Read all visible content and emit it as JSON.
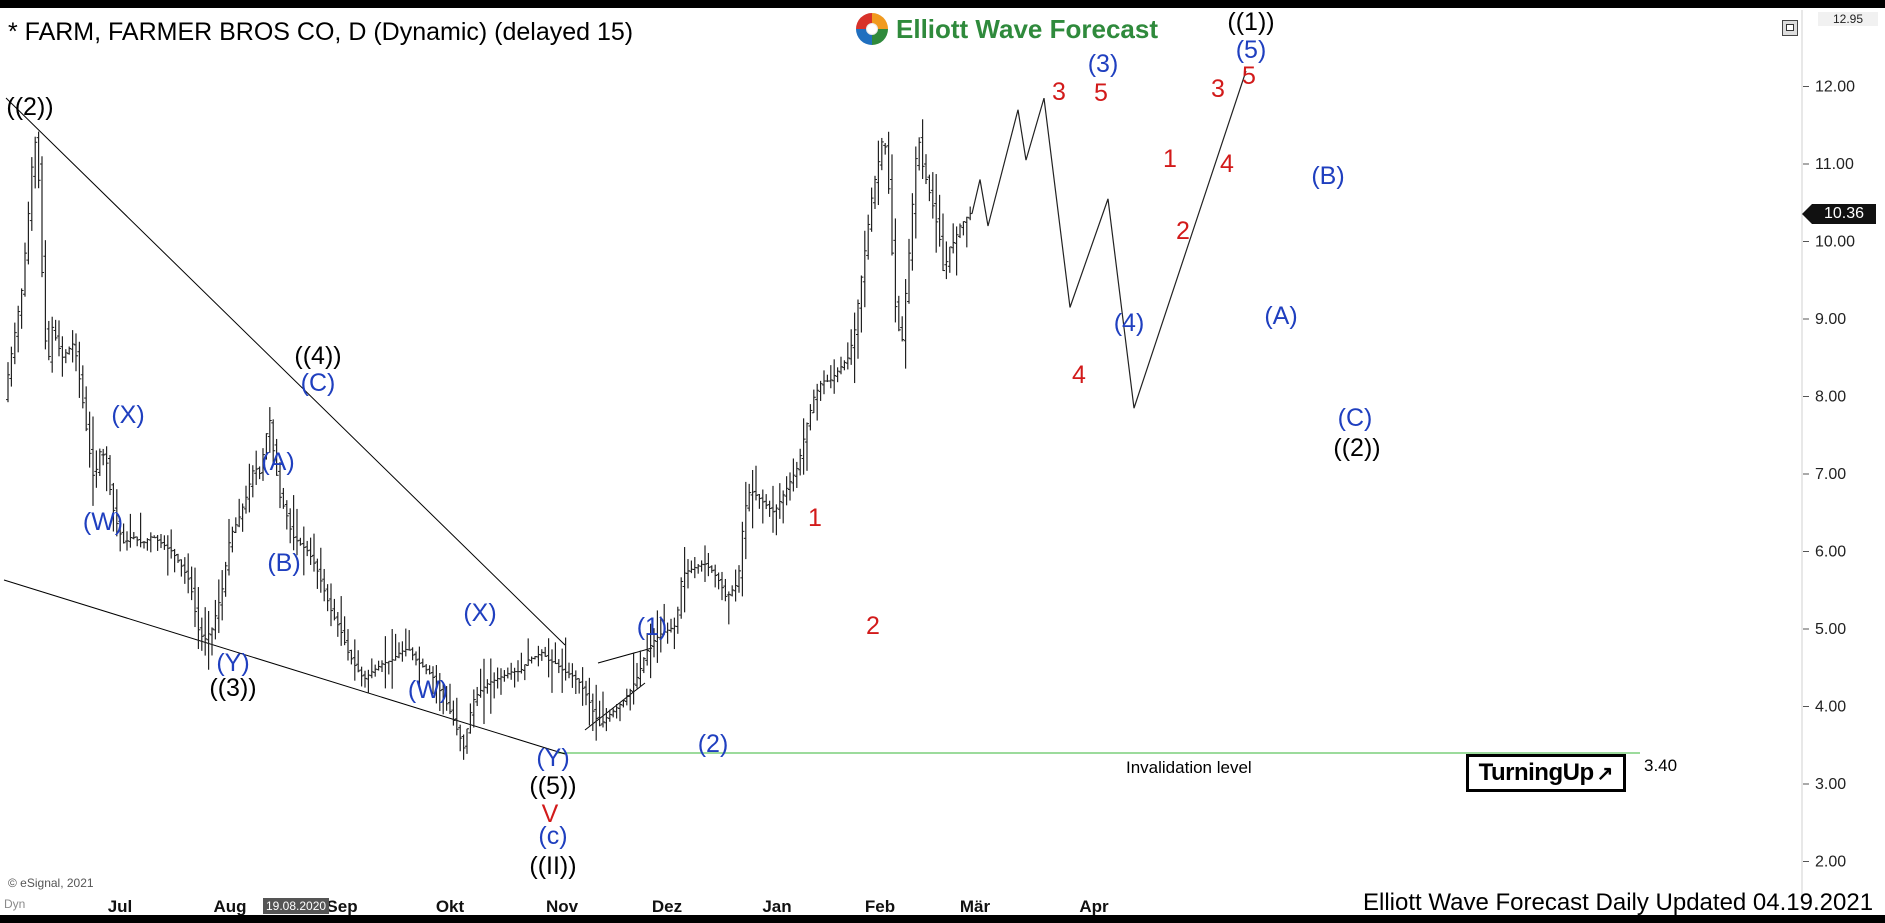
{
  "header": {
    "title": "* FARM, FARMER BROS CO, D (Dynamic) (delayed 15)",
    "logo_text": "Elliott Wave Forecast"
  },
  "price_axis": {
    "top_value": "12.95",
    "current_price": "10.36"
  },
  "footer": {
    "copyright": "© eSignal, 2021",
    "cursor_date": "19.08.2020",
    "left_label": "Dyn",
    "update_text": "Elliott Wave Forecast Daily Updated 04.19.2021"
  },
  "invalidation": {
    "label": "Invalidation level",
    "value": "3.40"
  },
  "turning_badge": {
    "text": "TurningUp",
    "icon": "arrow-up-right-icon"
  },
  "colors": {
    "blue": "#1f3fbf",
    "red": "#d21a1a",
    "black": "#000000",
    "green": "#7ccf7c",
    "brand_green": "#2f8a3c"
  },
  "chart_data": {
    "type": "ohlc",
    "y_ticks": [
      "2.00",
      "3.00",
      "4.00",
      "5.00",
      "6.00",
      "7.00",
      "8.00",
      "9.00",
      "10.00",
      "11.00",
      "12.00"
    ],
    "ylim": [
      1.5,
      13.0
    ],
    "x_ticks": [
      "Jul",
      "Aug",
      "Sep",
      "Okt",
      "Nov",
      "Dez",
      "Jan",
      "Feb",
      "Mär",
      "Apr"
    ],
    "price_path": [
      [
        0,
        7.8
      ],
      [
        10,
        8.6
      ],
      [
        20,
        9.4
      ],
      [
        28,
        10.6
      ],
      [
        32,
        11.4
      ],
      [
        36,
        11.0
      ],
      [
        40,
        9.6
      ],
      [
        45,
        8.3
      ],
      [
        50,
        8.9
      ],
      [
        55,
        8.7
      ],
      [
        60,
        8.5
      ],
      [
        66,
        8.6
      ],
      [
        72,
        8.7
      ],
      [
        80,
        8.0
      ],
      [
        86,
        7.4
      ],
      [
        92,
        6.9
      ],
      [
        98,
        7.3
      ],
      [
        104,
        7.2
      ],
      [
        110,
        6.6
      ],
      [
        116,
        6.3
      ],
      [
        122,
        6.1
      ],
      [
        130,
        6.2
      ],
      [
        140,
        6.1
      ],
      [
        150,
        6.2
      ],
      [
        160,
        6.1
      ],
      [
        170,
        6.0
      ],
      [
        180,
        5.8
      ],
      [
        188,
        5.6
      ],
      [
        196,
        5.0
      ],
      [
        202,
        4.85
      ],
      [
        210,
        5.0
      ],
      [
        220,
        5.5
      ],
      [
        228,
        6.2
      ],
      [
        236,
        6.4
      ],
      [
        244,
        6.7
      ],
      [
        252,
        7.1
      ],
      [
        258,
        7.0
      ],
      [
        264,
        7.5
      ],
      [
        268,
        7.7
      ],
      [
        272,
        7.2
      ],
      [
        278,
        6.7
      ],
      [
        284,
        6.5
      ],
      [
        290,
        6.2
      ],
      [
        298,
        6.1
      ],
      [
        306,
        6.0
      ],
      [
        314,
        5.8
      ],
      [
        322,
        5.5
      ],
      [
        330,
        5.2
      ],
      [
        338,
        5.0
      ],
      [
        346,
        4.7
      ],
      [
        354,
        4.5
      ],
      [
        362,
        4.35
      ],
      [
        370,
        4.45
      ],
      [
        380,
        4.55
      ],
      [
        390,
        4.6
      ],
      [
        398,
        4.7
      ],
      [
        406,
        4.75
      ],
      [
        414,
        4.6
      ],
      [
        422,
        4.5
      ],
      [
        430,
        4.4
      ],
      [
        438,
        4.2
      ],
      [
        446,
        4.0
      ],
      [
        452,
        3.8
      ],
      [
        458,
        3.6
      ],
      [
        462,
        3.45
      ],
      [
        466,
        3.8
      ],
      [
        472,
        4.1
      ],
      [
        478,
        4.2
      ],
      [
        486,
        4.3
      ],
      [
        494,
        4.35
      ],
      [
        502,
        4.4
      ],
      [
        510,
        4.45
      ],
      [
        518,
        4.45
      ],
      [
        526,
        4.6
      ],
      [
        534,
        4.65
      ],
      [
        540,
        4.7
      ],
      [
        546,
        4.6
      ],
      [
        554,
        4.55
      ],
      [
        562,
        4.45
      ],
      [
        570,
        4.4
      ],
      [
        578,
        4.3
      ],
      [
        586,
        4.1
      ],
      [
        592,
        3.9
      ],
      [
        598,
        3.75
      ],
      [
        604,
        3.85
      ],
      [
        612,
        3.95
      ],
      [
        620,
        4.05
      ],
      [
        628,
        4.2
      ],
      [
        636,
        4.4
      ],
      [
        644,
        4.7
      ],
      [
        652,
        4.85
      ],
      [
        660,
        4.95
      ],
      [
        668,
        5.0
      ],
      [
        674,
        5.05
      ],
      [
        680,
        5.7
      ],
      [
        686,
        5.75
      ],
      [
        694,
        5.8
      ],
      [
        702,
        5.85
      ],
      [
        710,
        5.75
      ],
      [
        718,
        5.6
      ],
      [
        724,
        5.4
      ],
      [
        730,
        5.5
      ],
      [
        736,
        5.6
      ],
      [
        742,
        6.5
      ],
      [
        748,
        6.8
      ],
      [
        756,
        6.7
      ],
      [
        764,
        6.6
      ],
      [
        772,
        6.5
      ],
      [
        780,
        6.7
      ],
      [
        788,
        6.9
      ],
      [
        796,
        7.1
      ],
      [
        804,
        7.6
      ],
      [
        812,
        8.0
      ],
      [
        820,
        8.2
      ],
      [
        828,
        8.2
      ],
      [
        834,
        8.3
      ],
      [
        840,
        8.4
      ],
      [
        846,
        8.5
      ],
      [
        852,
        8.8
      ],
      [
        858,
        9.4
      ],
      [
        864,
        10.0
      ],
      [
        870,
        10.6
      ],
      [
        876,
        11.0
      ],
      [
        880,
        11.3
      ],
      [
        884,
        11.2
      ],
      [
        888,
        10.4
      ],
      [
        892,
        9.3
      ],
      [
        896,
        8.9
      ],
      [
        900,
        8.7
      ],
      [
        904,
        9.4
      ],
      [
        908,
        10.0
      ],
      [
        912,
        10.8
      ],
      [
        916,
        11.4
      ],
      [
        920,
        11.0
      ],
      [
        926,
        10.7
      ],
      [
        932,
        10.4
      ],
      [
        938,
        10.0
      ],
      [
        942,
        9.5
      ],
      [
        946,
        9.9
      ],
      [
        952,
        10.0
      ],
      [
        958,
        10.2
      ],
      [
        964,
        10.3
      ],
      [
        968,
        10.36
      ]
    ],
    "projection_path": [
      [
        968,
        10.36
      ],
      [
        976,
        10.8
      ],
      [
        984,
        10.2
      ],
      [
        1014,
        11.7
      ],
      [
        1022,
        11.05
      ],
      [
        1040,
        11.85
      ],
      [
        1066,
        9.15
      ],
      [
        1104,
        10.55
      ],
      [
        1130,
        7.85
      ],
      [
        1242,
        12.2
      ]
    ],
    "invalidation_level": 3.4,
    "wave_labels": [
      {
        "text": "((2))",
        "color": "black"
      },
      {
        "text": "((4))",
        "color": "black"
      },
      {
        "text": "(C)",
        "color": "blue"
      },
      {
        "text": "(X)",
        "color": "blue"
      },
      {
        "text": "(W)",
        "color": "blue"
      },
      {
        "text": "(A)",
        "color": "blue"
      },
      {
        "text": "(B)",
        "color": "blue"
      },
      {
        "text": "(Y)",
        "color": "blue"
      },
      {
        "text": "((3))",
        "color": "black"
      },
      {
        "text": "(W)",
        "color": "blue"
      },
      {
        "text": "(X)",
        "color": "blue"
      },
      {
        "text": "(Y)",
        "color": "blue"
      },
      {
        "text": "((5))",
        "color": "black"
      },
      {
        "text": "V",
        "color": "red"
      },
      {
        "text": "(c)",
        "color": "blue"
      },
      {
        "text": "((II))",
        "color": "black"
      },
      {
        "text": "(1)",
        "color": "blue"
      },
      {
        "text": "(2)",
        "color": "blue"
      },
      {
        "text": "1",
        "color": "red"
      },
      {
        "text": "2",
        "color": "red"
      },
      {
        "text": "3",
        "color": "red"
      },
      {
        "text": "4",
        "color": "red"
      },
      {
        "text": "(3)",
        "color": "blue"
      },
      {
        "text": "5",
        "color": "red"
      },
      {
        "text": "(4)",
        "color": "blue"
      },
      {
        "text": "1",
        "color": "red"
      },
      {
        "text": "2",
        "color": "red"
      },
      {
        "text": "3",
        "color": "red"
      },
      {
        "text": "4",
        "color": "red"
      },
      {
        "text": "5",
        "color": "red"
      },
      {
        "text": "(5)",
        "color": "blue"
      },
      {
        "text": "((1))",
        "color": "black"
      },
      {
        "text": "(A)",
        "color": "blue"
      },
      {
        "text": "(B)",
        "color": "blue"
      },
      {
        "text": "(C)",
        "color": "blue"
      },
      {
        "text": "((2))",
        "color": "black"
      }
    ]
  }
}
